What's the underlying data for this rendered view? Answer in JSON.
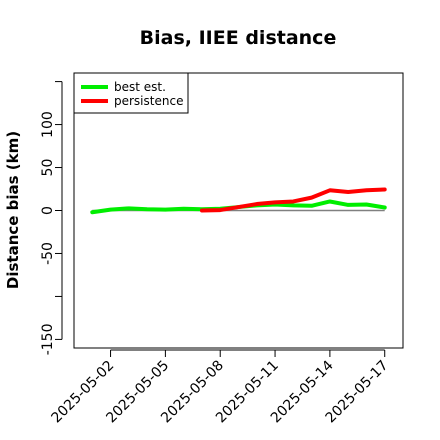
{
  "chart_data": {
    "type": "line",
    "title": "Bias, IIEE distance",
    "xlabel": "",
    "ylabel": "Distance bias (km)",
    "x_type": "date",
    "x_range": [
      "2025-04-30",
      "2025-05-18"
    ],
    "y_range": [
      -160,
      160
    ],
    "x_ticks": [
      "2025-05-02",
      "2025-05-05",
      "2025-05-08",
      "2025-05-11",
      "2025-05-14",
      "2025-05-17"
    ],
    "y_ticks": [
      -150,
      -100,
      -50,
      0,
      50,
      100,
      150
    ],
    "y_tick_labels": {
      "-150": "-150",
      "-100": "",
      "-50": "-50",
      "0": "0",
      "50": "50",
      "100": "100",
      "150": ""
    },
    "reference_line": {
      "y": 0,
      "color": "#808080"
    },
    "grid": false,
    "legend_placement": "top-left",
    "series": [
      {
        "name": "best est.",
        "color": "#00ee00",
        "x": [
          "2025-05-01",
          "2025-05-02",
          "2025-05-03",
          "2025-05-04",
          "2025-05-05",
          "2025-05-06",
          "2025-05-07",
          "2025-05-08",
          "2025-05-09",
          "2025-05-10",
          "2025-05-11",
          "2025-05-12",
          "2025-05-13",
          "2025-05-14",
          "2025-05-15",
          "2025-05-16",
          "2025-05-17"
        ],
        "y": [
          -2,
          1,
          2.5,
          1.5,
          1,
          2,
          1.5,
          2,
          4,
          6,
          7,
          6,
          5.5,
          10.5,
          6.5,
          7,
          3.5
        ]
      },
      {
        "name": "persistence",
        "color": "#ff0000",
        "x": [
          "2025-05-07",
          "2025-05-08",
          "2025-05-09",
          "2025-05-10",
          "2025-05-11",
          "2025-05-12",
          "2025-05-13",
          "2025-05-14",
          "2025-05-15",
          "2025-05-16",
          "2025-05-17"
        ],
        "y": [
          0,
          0.5,
          4,
          7.5,
          9.5,
          10.5,
          15,
          23.5,
          21.5,
          23.5,
          24.5
        ]
      }
    ]
  }
}
